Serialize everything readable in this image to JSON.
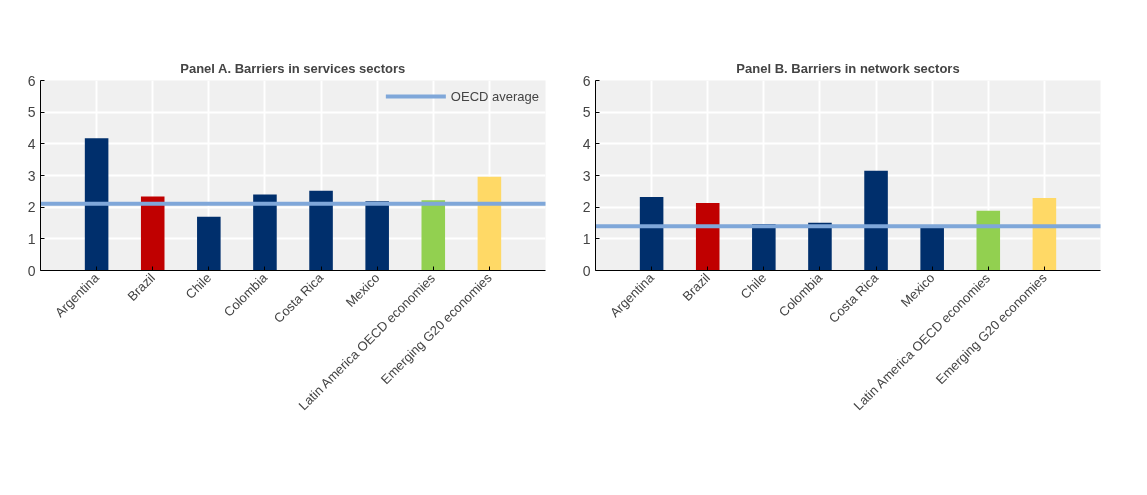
{
  "chart_data": [
    {
      "type": "bar",
      "title": "Panel A. Barriers in services sectors",
      "categories": [
        "Argentina",
        "Brazil",
        "Chile",
        "Colombia",
        "Costa Rica",
        "Mexico",
        "Latin America OECD economies",
        "Emerging G20 economies"
      ],
      "values": [
        4.18,
        2.34,
        1.7,
        2.4,
        2.52,
        2.19,
        2.22,
        2.96
      ],
      "colors": [
        "#002f6c",
        "#c00000",
        "#002f6c",
        "#002f6c",
        "#002f6c",
        "#002f6c",
        "#92d050",
        "#ffd966"
      ],
      "ylim": [
        0,
        6
      ],
      "yticks": [
        0,
        1,
        2,
        3,
        4,
        5,
        6
      ],
      "grid": true,
      "legend": "top_right",
      "ref_lines": [
        {
          "axis": "y",
          "value": 2.11,
          "label": "OECD average",
          "color": "#7fa7d9"
        }
      ]
    },
    {
      "type": "bar",
      "title": "Panel B. Barriers in network sectors",
      "categories": [
        "Argentina",
        "Brazil",
        "Chile",
        "Colombia",
        "Costa Rica",
        "Mexico",
        "Latin America OECD economies",
        "Emerging G20 economies"
      ],
      "values": [
        2.32,
        2.13,
        1.47,
        1.51,
        3.15,
        1.35,
        1.89,
        2.29
      ],
      "colors": [
        "#002f6c",
        "#c00000",
        "#002f6c",
        "#002f6c",
        "#002f6c",
        "#002f6c",
        "#92d050",
        "#ffd966"
      ],
      "ylim": [
        0,
        6
      ],
      "yticks": [
        0,
        1,
        2,
        3,
        4,
        5,
        6
      ],
      "grid": true,
      "ref_lines": [
        {
          "axis": "y",
          "value": 1.4,
          "color": "#7fa7d9"
        }
      ]
    }
  ]
}
